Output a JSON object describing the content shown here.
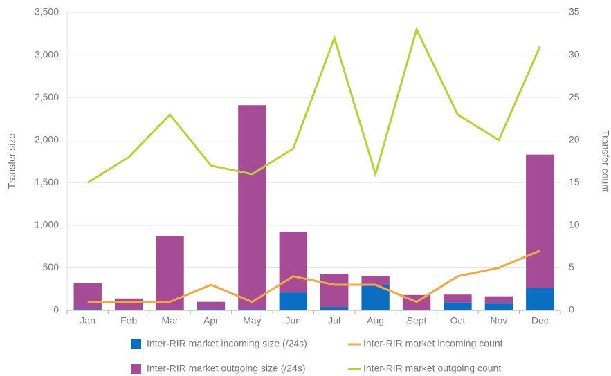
{
  "chart_data": {
    "type": "bar-line",
    "categories": [
      "Jan",
      "Feb",
      "Mar",
      "Apr",
      "May",
      "Jun",
      "Jul",
      "Aug",
      "Sept",
      "Oct",
      "Nov",
      "Dec"
    ],
    "ylabel": "Transfer size",
    "y2label": "Transfer count",
    "ylim": [
      0,
      3500
    ],
    "yticks": [
      0,
      500,
      {
        "value": 1000,
        "label": "1,000"
      },
      {
        "value": 1500,
        "label": "1,500"
      },
      {
        "value": 2000,
        "label": "2,000"
      },
      {
        "value": 2500,
        "label": "2,500"
      },
      {
        "value": 3000,
        "label": "3,000"
      },
      {
        "value": 3500,
        "label": "3,500"
      }
    ],
    "y2lim": [
      0,
      35
    ],
    "y2ticks": [
      0,
      5,
      10,
      15,
      20,
      25,
      30,
      35
    ],
    "grid": true,
    "legend": "bottom",
    "series": [
      {
        "name": "Inter-RIR market incoming size (/24s)",
        "kind": "bar",
        "color": "#0a6fc2",
        "values": [
          15,
          5,
          5,
          15,
          15,
          210,
          40,
          300,
          0,
          95,
          80,
          260
        ]
      },
      {
        "name": "Inter-RIR market incoming count",
        "kind": "line",
        "axis": "y2",
        "color": "#f4a742",
        "values": [
          1,
          1,
          1,
          3,
          1,
          4,
          3,
          3,
          1,
          4,
          5,
          7
        ]
      },
      {
        "name": "Inter-RIR market outgoing size (/24s)",
        "kind": "bar",
        "color": "#a64b96",
        "values": [
          305,
          135,
          865,
          85,
          2395,
          710,
          390,
          105,
          180,
          90,
          85,
          1570
        ]
      },
      {
        "name": "Inter-RIR market outgoing count",
        "kind": "line",
        "axis": "y2",
        "color": "#b5d334",
        "values": [
          15,
          18,
          23,
          17,
          16,
          19,
          32,
          16,
          33,
          23,
          20,
          31
        ]
      }
    ]
  }
}
